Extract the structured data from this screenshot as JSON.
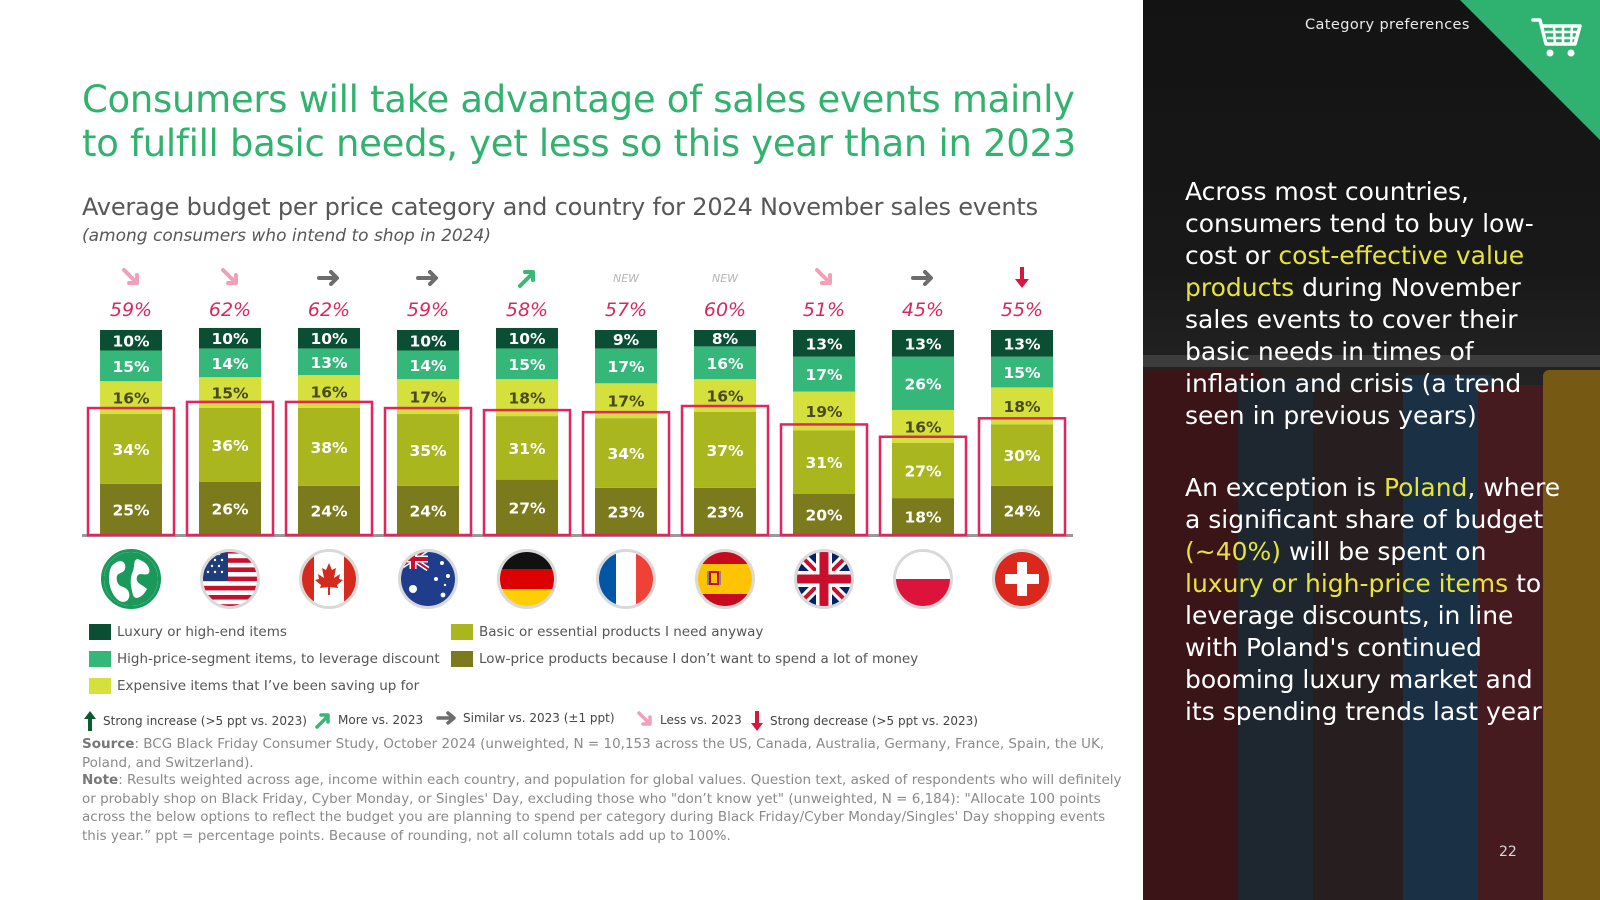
{
  "header": {
    "section_label": "Category preferences",
    "page_number": "22"
  },
  "title": "Consumers will take advantage of sales events mainly to fulfill basic needs, yet less so this year than in 2023",
  "subtitle": "Average budget per price category and country for 2024 November sales events",
  "subtitle_note": "(among consumers who intend to shop in 2024)",
  "colors": {
    "luxury": "#0a4f33",
    "high_price": "#34b779",
    "expensive": "#d5e03c",
    "basic": "#a9b61d",
    "low_price": "#7b7b1e",
    "highlight_box": "#e6245c",
    "top_label": "#d8275f",
    "new_label": "#b5b5b5",
    "arrow_gray": "#6d6d6d",
    "arrow_pink": "#f0a0b8",
    "arrow_green": "#39b774",
    "arrow_red": "#d9163f",
    "arrow_dark_green": "#0b5a35"
  },
  "chart_data": {
    "type": "stacked-bar",
    "categories": [
      "Global",
      "US",
      "Canada",
      "Australia",
      "Germany",
      "France",
      "Spain",
      "UK",
      "Poland",
      "Switzerland"
    ],
    "flags": [
      "globe",
      "us",
      "canada",
      "australia",
      "germany",
      "france",
      "spain",
      "uk",
      "poland",
      "switzerland"
    ],
    "unit": "%",
    "series": [
      {
        "key": "low_price",
        "name": "Low-price products because I don’t want to spend a lot of money",
        "values": [
          25,
          26,
          24,
          24,
          27,
          23,
          23,
          20,
          18,
          24
        ]
      },
      {
        "key": "basic",
        "name": "Basic or essential products I need anyway",
        "values": [
          34,
          36,
          38,
          35,
          31,
          34,
          37,
          31,
          27,
          30
        ]
      },
      {
        "key": "expensive",
        "name": "Expensive items that I’ve been saving up for",
        "values": [
          16,
          15,
          16,
          17,
          18,
          17,
          16,
          19,
          16,
          18
        ]
      },
      {
        "key": "high_price",
        "name": "High-price-segment items, to leverage discount",
        "values": [
          15,
          14,
          13,
          14,
          15,
          17,
          16,
          17,
          26,
          15
        ]
      },
      {
        "key": "luxury",
        "name": "Luxury or high-end items",
        "values": [
          10,
          10,
          10,
          10,
          10,
          9,
          8,
          13,
          13,
          13
        ]
      }
    ],
    "top_labels": [
      "59%",
      "62%",
      "62%",
      "59%",
      "58%",
      "57%",
      "60%",
      "51%",
      "45%",
      "55%"
    ],
    "trends": [
      "less",
      "less",
      "similar",
      "similar",
      "more",
      "new",
      "new",
      "less",
      "similar",
      "strong_decrease"
    ],
    "new_label": "NEW",
    "highlighted_series": [
      "low_price",
      "basic"
    ]
  },
  "legend": {
    "left": [
      {
        "key": "luxury",
        "label": "Luxury or high-end items"
      },
      {
        "key": "high_price",
        "label": "High-price-segment items, to leverage discount"
      },
      {
        "key": "expensive",
        "label": "Expensive items that I’ve been saving up for"
      }
    ],
    "right": [
      {
        "key": "basic",
        "label": "Basic or essential products I need anyway"
      },
      {
        "key": "low_price",
        "label": "Low-price products because I don’t want to spend a lot of money"
      }
    ]
  },
  "trend_legend": {
    "strong_increase": "Strong increase (>5 ppt vs. 2023)",
    "more": "More vs. 2023",
    "similar": "Similar vs. 2023 (±1 ppt)",
    "less": "Less vs. 2023",
    "strong_decrease": "Strong decrease (>5 ppt vs. 2023)"
  },
  "footnotes": {
    "source_label": "Source",
    "source_text": ": BCG Black Friday Consumer Study, October 2024 (unweighted, N = 10,153 across the US, Canada, Australia, Germany, France, Spain, the UK, Poland, and Switzerland).",
    "note_label": "Note",
    "note_text": ": Results weighted across age, income within each country, and population for global values. Question text, asked of respondents who will definitely or probably shop on Black Friday, Cyber Monday, or Singles' Day, excluding those who \"don’t know yet\" (unweighted, N = 6,184): \"Allocate 100 points across the below options to reflect the budget you are planning to spend per category during Black Friday/Cyber Monday/Singles' Day shopping events this year.” ppt = percentage points. Because of rounding, not all column totals add up to 100%."
  },
  "panel": {
    "p1_a": "Across most countries, consumers tend to buy low-cost or ",
    "p1_hl": "cost-effective value products",
    "p1_b": " during November sales events to cover their basic needs in times of inflation and crisis (a trend seen in previous years)",
    "p2_a": "An exception is ",
    "p2_hl1": "Poland",
    "p2_b": ", where a significant share of budget ",
    "p2_hl2": "(~40%)",
    "p2_c": " will be spent on ",
    "p2_hl3": "luxury or high-price items",
    "p2_d": " to leverage discounts, in line with Poland's continued booming luxury market and its spending trends last year"
  }
}
